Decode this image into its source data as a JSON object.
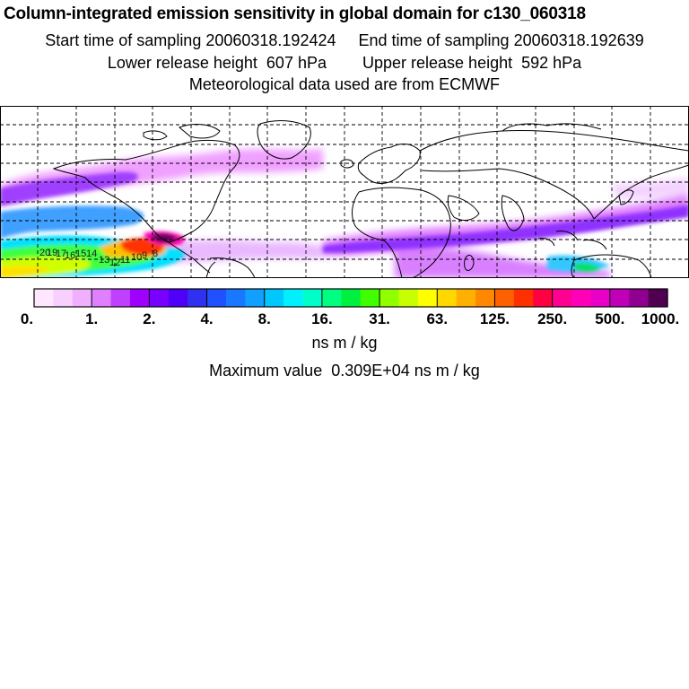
{
  "header": {
    "title": "Column-integrated emission sensitivity in global domain for c130_060318",
    "line1": "Start time of sampling 20060318.192424     End time of sampling 20060318.192639",
    "line2": "Lower release height  607 hPa        Upper release height  592 hPa",
    "line3": "Meteorological data used are from ECMWF"
  },
  "map": {
    "domain": "global",
    "graticule": "dashed",
    "track_labels": [
      "20",
      "19",
      "17",
      "16",
      "15",
      "14",
      "13",
      "12",
      "11",
      "10",
      "9",
      "8"
    ]
  },
  "legend": {
    "tick_labels": [
      "0.",
      "1.",
      "2.",
      "4.",
      "8.",
      "16.",
      "31.",
      "63.",
      "125.",
      "250.",
      "500.",
      "1000."
    ],
    "colors": [
      "#ffe8ff",
      "#f8d0ff",
      "#f0b0ff",
      "#e080ff",
      "#c040ff",
      "#a000ff",
      "#7800ff",
      "#5000f8",
      "#3030f0",
      "#2050ff",
      "#1878ff",
      "#10a0ff",
      "#00c8ff",
      "#00f0ff",
      "#00ffc8",
      "#00ff80",
      "#00f040",
      "#40ff00",
      "#90ff00",
      "#c8ff00",
      "#ffff00",
      "#ffd800",
      "#ffb000",
      "#ff8800",
      "#ff6000",
      "#ff3000",
      "#ff0040",
      "#ff0090",
      "#ff00b8",
      "#e800c8",
      "#c000b8",
      "#900090",
      "#500050"
    ],
    "unit": "ns m / kg",
    "max_value_text": "Maximum value  0.309E+04 ns m / kg"
  }
}
